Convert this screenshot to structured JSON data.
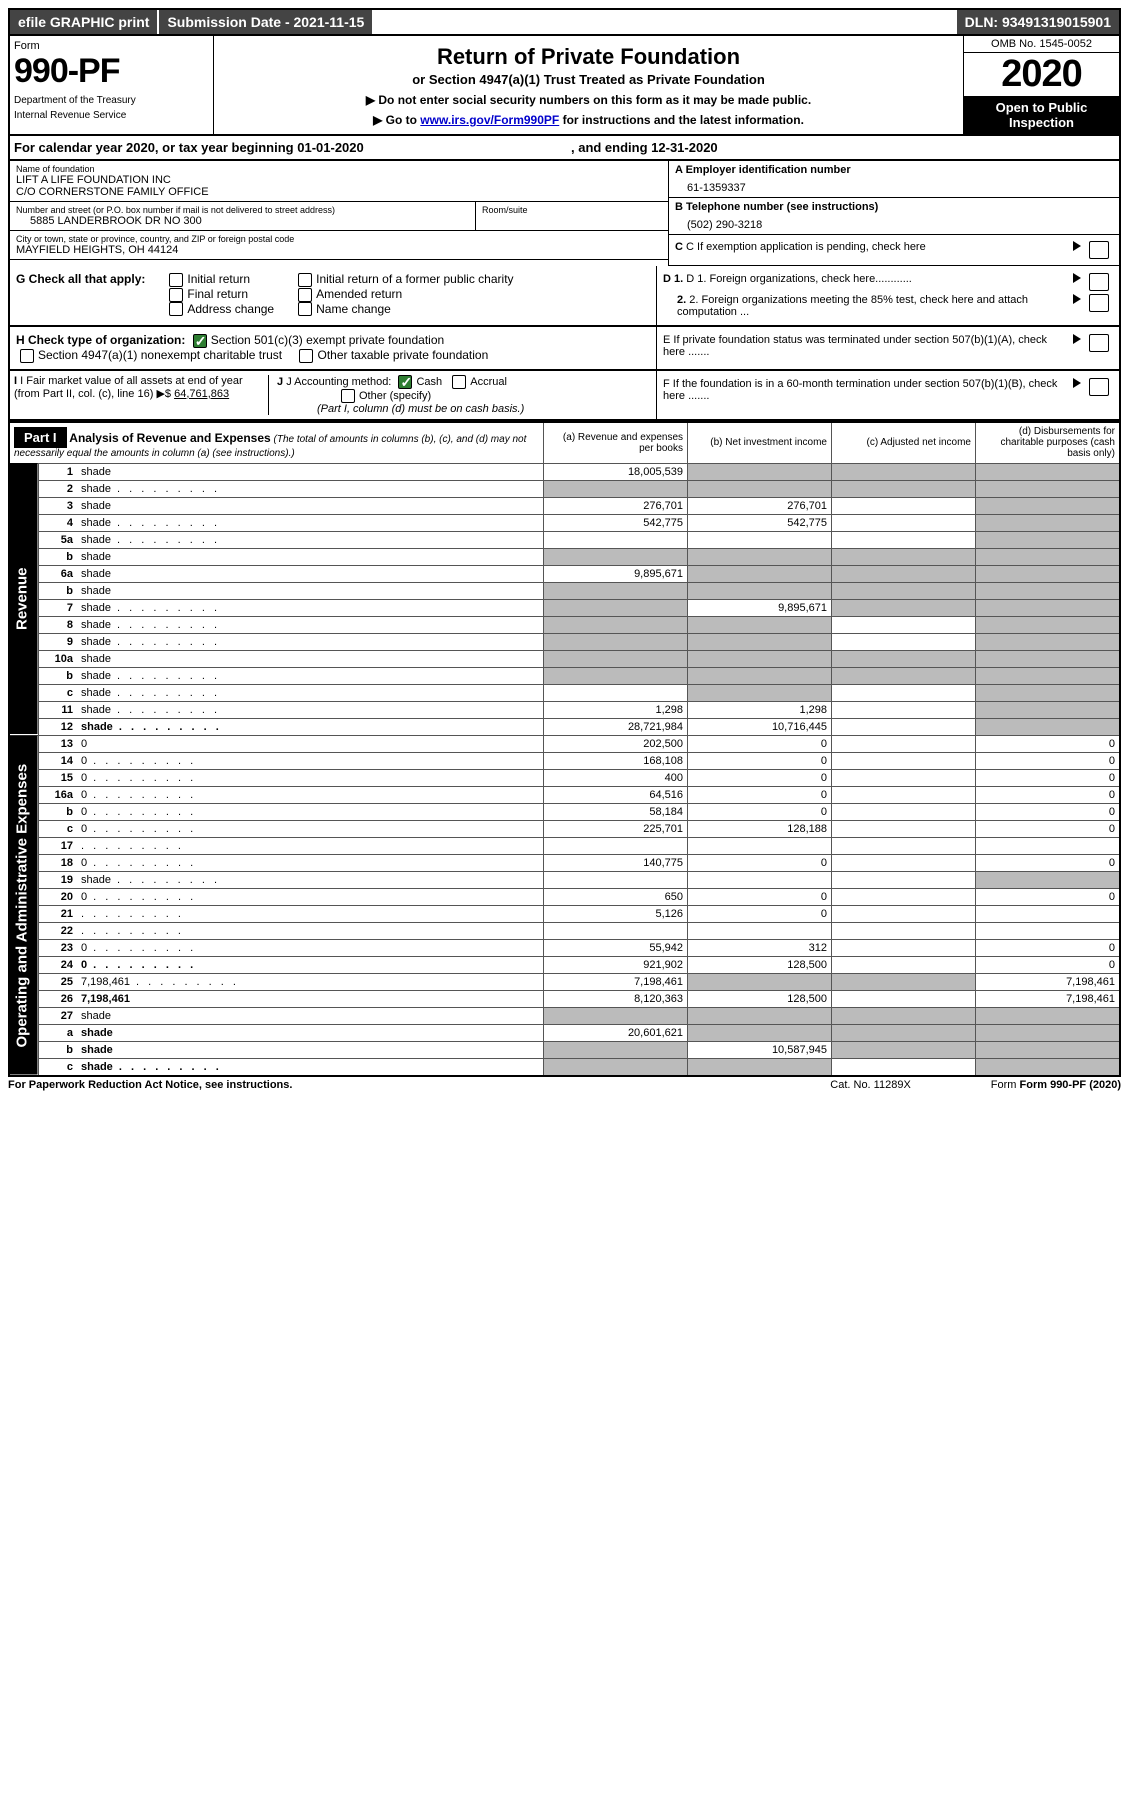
{
  "top_bar": {
    "efile": "efile GRAPHIC print",
    "submission": "Submission Date - 2021-11-15",
    "dln": "DLN: 93491319015901"
  },
  "header": {
    "form_label": "Form",
    "form_number": "990-PF",
    "dept1": "Department of the Treasury",
    "dept2": "Internal Revenue Service",
    "title": "Return of Private Foundation",
    "subtitle": "or Section 4947(a)(1) Trust Treated as Private Foundation",
    "instr1": "▶ Do not enter social security numbers on this form as it may be made public.",
    "instr2_pre": "▶ Go to ",
    "instr2_link": "www.irs.gov/Form990PF",
    "instr2_post": " for instructions and the latest information.",
    "omb": "OMB No. 1545-0052",
    "year": "2020",
    "open": "Open to Public Inspection"
  },
  "cal_year": {
    "prefix": "For calendar year 2020, or tax year beginning ",
    "begin": "01-01-2020",
    "mid": ", and ending ",
    "end": "12-31-2020"
  },
  "foundation": {
    "name_label": "Name of foundation",
    "name1": "LIFT A LIFE FOUNDATION INC",
    "name2": "C/O CORNERSTONE FAMILY OFFICE",
    "addr_label": "Number and street (or P.O. box number if mail is not delivered to street address)",
    "addr": "5885 LANDERBROOK DR NO 300",
    "room_label": "Room/suite",
    "city_label": "City or town, state or province, country, and ZIP or foreign postal code",
    "city": "MAYFIELD HEIGHTS, OH  44124"
  },
  "right_info": {
    "a_label": "A Employer identification number",
    "ein": "61-1359337",
    "b_label": "B Telephone number (see instructions)",
    "phone": "(502) 290-3218",
    "c_label": "C If exemption application is pending, check here",
    "d1": "D 1. Foreign organizations, check here............",
    "d2": "2. Foreign organizations meeting the 85% test, check here and attach computation ...",
    "e": "E  If private foundation status was terminated under section 507(b)(1)(A), check here .......",
    "f": "F  If the foundation is in a 60-month termination under section 507(b)(1)(B), check here ......."
  },
  "g": {
    "label": "G Check all that apply:",
    "opts": [
      "Initial return",
      "Final return",
      "Address change",
      "Initial return of a former public charity",
      "Amended return",
      "Name change"
    ]
  },
  "h": {
    "label": "H Check type of organization:",
    "opt1": "Section 501(c)(3) exempt private foundation",
    "opt2": "Section 4947(a)(1) nonexempt charitable trust",
    "opt3": "Other taxable private foundation"
  },
  "i": {
    "label": "I Fair market value of all assets at end of year (from Part II, col. (c), line 16)",
    "val_prefix": "▶$ ",
    "val": "64,761,863"
  },
  "j": {
    "label": "J Accounting method:",
    "cash": "Cash",
    "accrual": "Accrual",
    "other": "Other (specify)",
    "note": "(Part I, column (d) must be on cash basis.)"
  },
  "part1": {
    "label": "Part I",
    "title": "Analysis of Revenue and Expenses",
    "note": "(The total of amounts in columns (b), (c), and (d) may not necessarily equal the amounts in column (a) (see instructions).)",
    "col_a": "(a) Revenue and expenses per books",
    "col_b": "(b) Net investment income",
    "col_c": "(c) Adjusted net income",
    "col_d": "(d) Disbursements for charitable purposes (cash basis only)"
  },
  "sections": {
    "revenue": "Revenue",
    "op_admin": "Operating and Administrative Expenses"
  },
  "rows": [
    {
      "n": "1",
      "d": "shade",
      "a": "18,005,539",
      "b": "shade",
      "c": "shade"
    },
    {
      "n": "2",
      "d": "shade",
      "a": "shade",
      "b": "shade",
      "c": "shade",
      "dots": true
    },
    {
      "n": "3",
      "d": "shade",
      "a": "276,701",
      "b": "276,701",
      "c": ""
    },
    {
      "n": "4",
      "d": "shade",
      "a": "542,775",
      "b": "542,775",
      "c": "",
      "dots": true
    },
    {
      "n": "5a",
      "d": "shade",
      "a": "",
      "b": "",
      "c": "",
      "dots": true
    },
    {
      "n": "b",
      "d": "shade",
      "a": "shade",
      "b": "shade",
      "c": "shade"
    },
    {
      "n": "6a",
      "d": "shade",
      "a": "9,895,671",
      "b": "shade",
      "c": "shade"
    },
    {
      "n": "b",
      "d": "shade",
      "a": "shade",
      "b": "shade",
      "c": "shade"
    },
    {
      "n": "7",
      "d": "shade",
      "a": "shade",
      "b": "9,895,671",
      "c": "shade",
      "dots": true
    },
    {
      "n": "8",
      "d": "shade",
      "a": "shade",
      "b": "shade",
      "c": "",
      "dots": true
    },
    {
      "n": "9",
      "d": "shade",
      "a": "shade",
      "b": "shade",
      "c": "",
      "dots": true
    },
    {
      "n": "10a",
      "d": "shade",
      "a": "shade",
      "b": "shade",
      "c": "shade"
    },
    {
      "n": "b",
      "d": "shade",
      "a": "shade",
      "b": "shade",
      "c": "shade",
      "dots": true
    },
    {
      "n": "c",
      "d": "shade",
      "a": "",
      "b": "shade",
      "c": "",
      "dots": true
    },
    {
      "n": "11",
      "d": "shade",
      "a": "1,298",
      "b": "1,298",
      "c": "",
      "dots": true
    },
    {
      "n": "12",
      "d": "shade",
      "a": "28,721,984",
      "b": "10,716,445",
      "c": "",
      "bold": true,
      "dots": true
    }
  ],
  "op_rows": [
    {
      "n": "13",
      "d": "0",
      "a": "202,500",
      "b": "0",
      "c": ""
    },
    {
      "n": "14",
      "d": "0",
      "a": "168,108",
      "b": "0",
      "c": "",
      "dots": true
    },
    {
      "n": "15",
      "d": "0",
      "a": "400",
      "b": "0",
      "c": "",
      "dots": true
    },
    {
      "n": "16a",
      "d": "0",
      "a": "64,516",
      "b": "0",
      "c": "",
      "dots": true
    },
    {
      "n": "b",
      "d": "0",
      "a": "58,184",
      "b": "0",
      "c": "",
      "dots": true
    },
    {
      "n": "c",
      "d": "0",
      "a": "225,701",
      "b": "128,188",
      "c": "",
      "dots": true
    },
    {
      "n": "17",
      "d": "",
      "a": "",
      "b": "",
      "c": "",
      "dots": true
    },
    {
      "n": "18",
      "d": "0",
      "a": "140,775",
      "b": "0",
      "c": "",
      "dots": true
    },
    {
      "n": "19",
      "d": "shade",
      "a": "",
      "b": "",
      "c": "",
      "dots": true
    },
    {
      "n": "20",
      "d": "0",
      "a": "650",
      "b": "0",
      "c": "",
      "dots": true
    },
    {
      "n": "21",
      "d": "",
      "a": "5,126",
      "b": "0",
      "c": "",
      "dots": true
    },
    {
      "n": "22",
      "d": "",
      "a": "",
      "b": "",
      "c": "",
      "dots": true
    },
    {
      "n": "23",
      "d": "0",
      "a": "55,942",
      "b": "312",
      "c": "",
      "dots": true
    },
    {
      "n": "24",
      "d": "0",
      "a": "921,902",
      "b": "128,500",
      "c": "",
      "bold": true,
      "dots": true
    },
    {
      "n": "25",
      "d": "7,198,461",
      "a": "7,198,461",
      "b": "shade",
      "c": "shade",
      "dots": true
    },
    {
      "n": "26",
      "d": "7,198,461",
      "a": "8,120,363",
      "b": "128,500",
      "c": "",
      "bold": true
    },
    {
      "n": "27",
      "d": "shade",
      "a": "shade",
      "b": "shade",
      "c": "shade"
    },
    {
      "n": "a",
      "d": "shade",
      "a": "20,601,621",
      "b": "shade",
      "c": "shade",
      "bold": true
    },
    {
      "n": "b",
      "d": "shade",
      "a": "shade",
      "b": "10,587,945",
      "c": "shade",
      "bold": true
    },
    {
      "n": "c",
      "d": "shade",
      "a": "shade",
      "b": "shade",
      "c": "",
      "bold": true,
      "dots": true
    }
  ],
  "footer": {
    "left": "For Paperwork Reduction Act Notice, see instructions.",
    "cat": "Cat. No. 11289X",
    "form": "Form 990-PF (2020)"
  }
}
